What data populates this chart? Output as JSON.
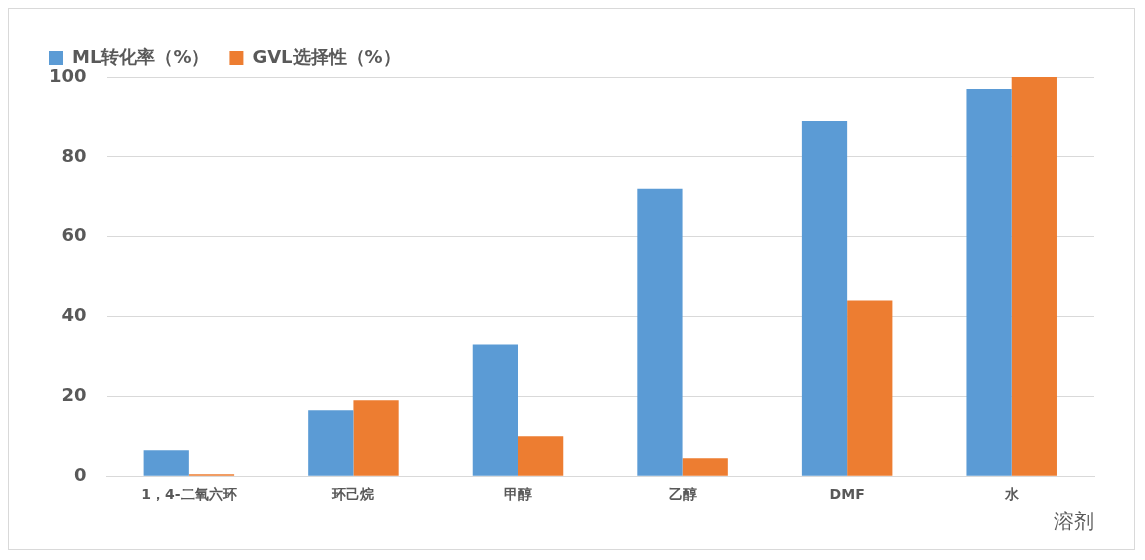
{
  "chart_data": {
    "type": "bar",
    "xlabel": "溶剂",
    "categories": [
      "1，4-二氧六环",
      "环己烷",
      "甲醇",
      "乙醇",
      "DMF",
      "水"
    ],
    "series": [
      {
        "name": "ML转化率（%）",
        "color": "#5b9bd5",
        "values": [
          6.5,
          16.5,
          33,
          72,
          89,
          97
        ]
      },
      {
        "name": "GVL选择性（%）",
        "color": "#ed7d31",
        "values": [
          0.5,
          19,
          10,
          4.5,
          44,
          100
        ]
      }
    ],
    "ylim": [
      0,
      100
    ],
    "yticks": [
      0,
      20,
      40,
      60,
      80,
      100
    ],
    "grid": "y",
    "legend": "top left"
  }
}
